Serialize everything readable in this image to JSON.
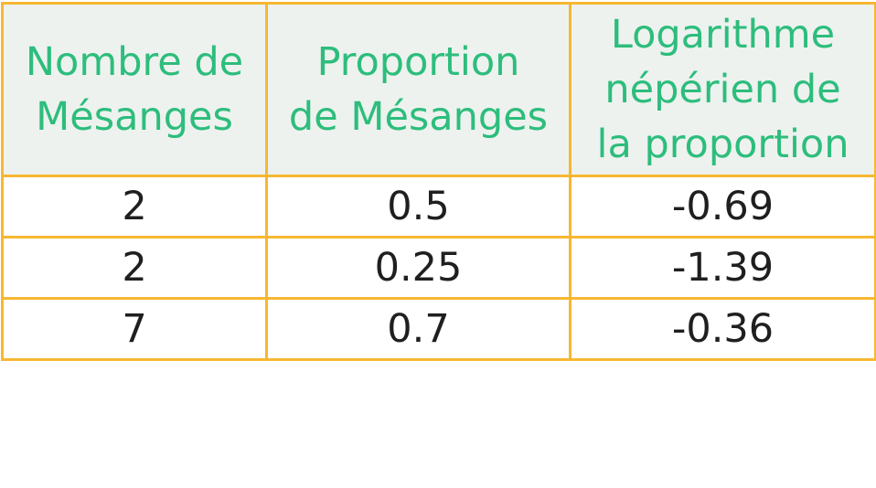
{
  "table": {
    "headers": [
      {
        "lines": [
          "Nombre de",
          "Mésanges"
        ]
      },
      {
        "lines": [
          "Proportion",
          "de Mésanges"
        ]
      },
      {
        "lines": [
          "Logarithme",
          "népérien de",
          "la proportion"
        ]
      }
    ],
    "rows": [
      [
        "2",
        "0.5",
        "-0.69"
      ],
      [
        "2",
        "0.25",
        "-1.39"
      ],
      [
        "7",
        "0.7",
        "-0.36"
      ]
    ]
  },
  "colors": {
    "border": "#f7b731",
    "header_text": "#2dbd7c",
    "header_background": "#edf2ef",
    "cell_text": "#1f1f1f"
  }
}
